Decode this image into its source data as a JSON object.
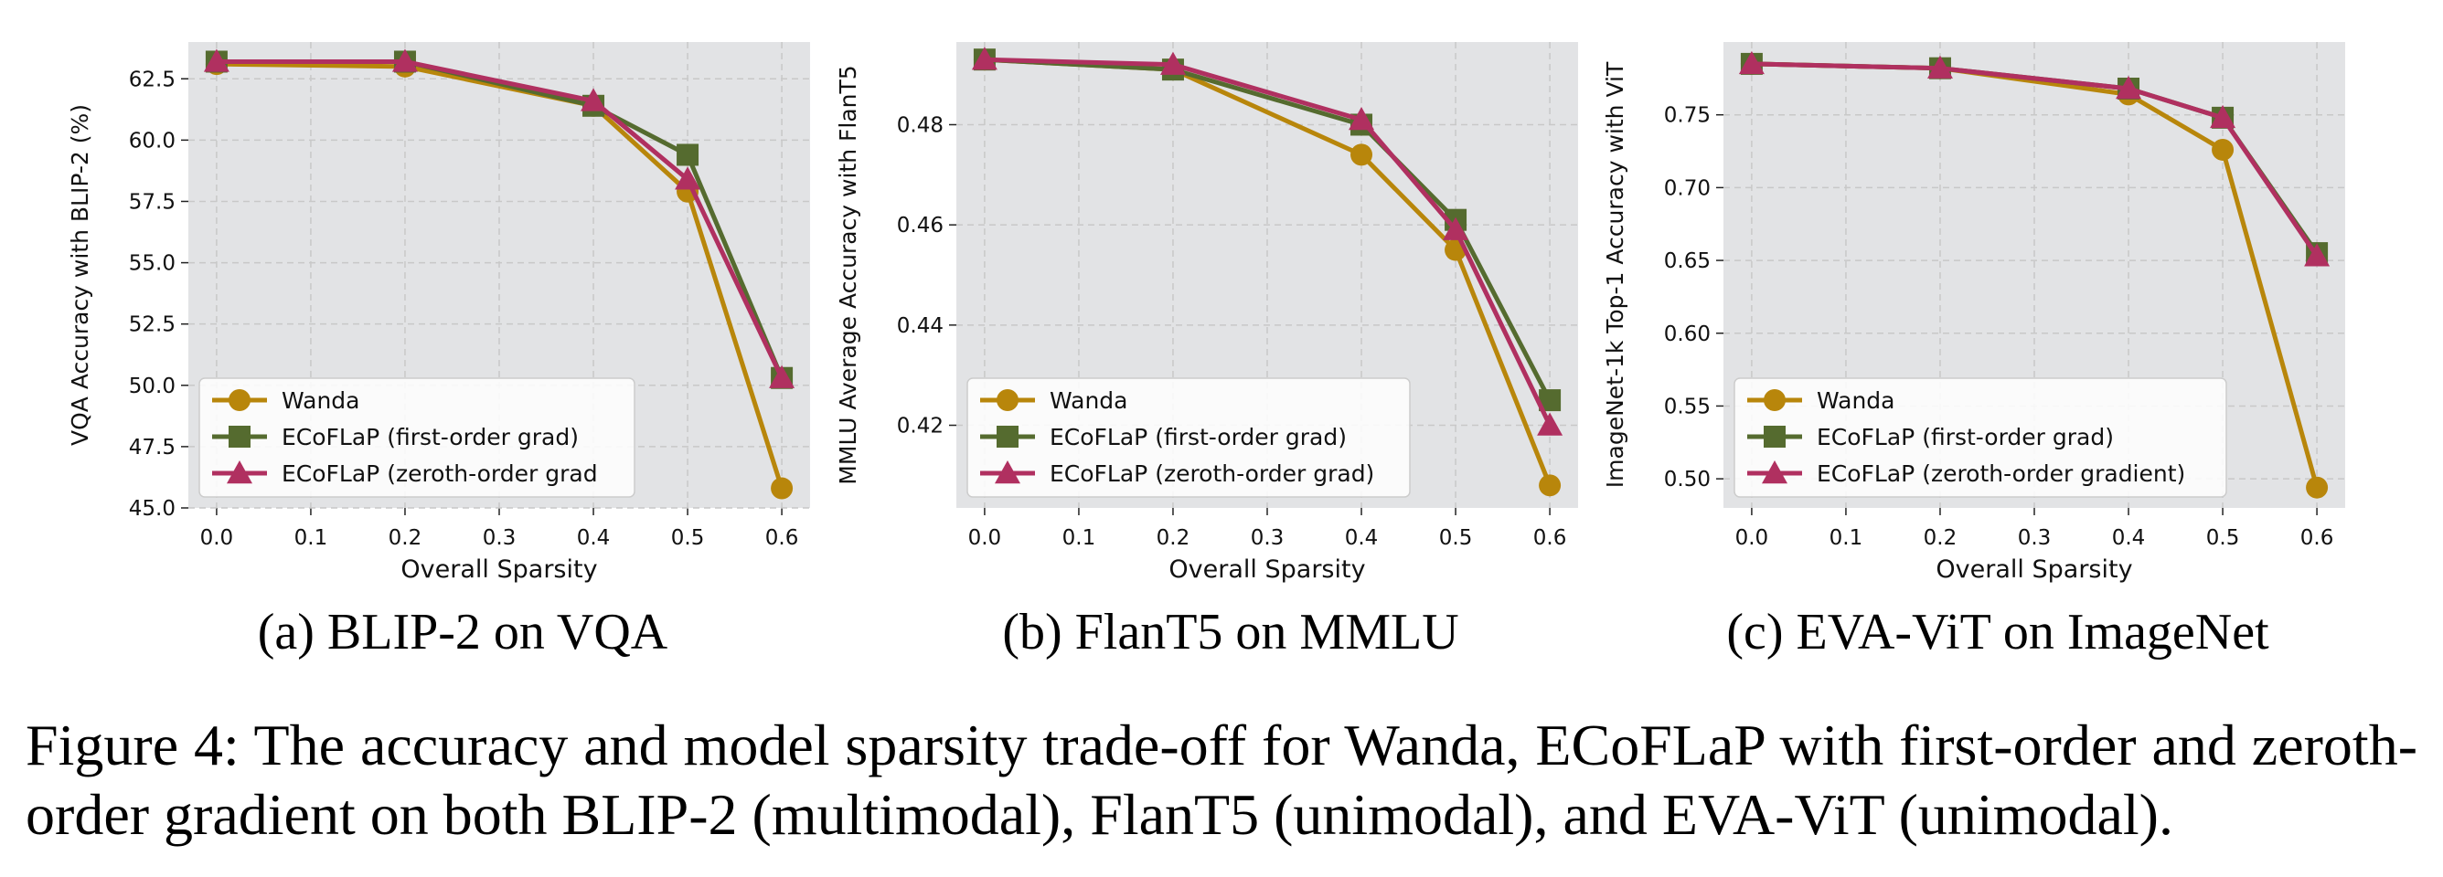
{
  "figure": {
    "caption": "Figure 4: The accuracy and model sparsity trade-off for Wanda, ECoFLaP with first-order and zeroth-order gradient on both BLIP-2 (multimodal), FlanT5 (unimodal), and EVA-ViT (unimodal)."
  },
  "colors": {
    "wanda": "#B8860B",
    "first": "#556B2F",
    "zeroth": "#B03060",
    "plot_bg": "#E2E3E5",
    "grid": "#C8C8C8"
  },
  "chart_data": [
    {
      "type": "line",
      "subtitle": "(a) BLIP-2 on VQA",
      "xlabel": "Overall Sparsity",
      "ylabel": "VQA Accuracy with BLIP-2 (%)",
      "x": [
        0.0,
        0.2,
        0.4,
        0.5,
        0.6
      ],
      "xlim": [
        -0.03,
        0.63
      ],
      "ylim": [
        45.0,
        64.0
      ],
      "xticks": [
        "0.0",
        "0.1",
        "0.2",
        "0.3",
        "0.4",
        "0.5",
        "0.6"
      ],
      "yticks": [
        "45.0",
        "47.5",
        "50.0",
        "52.5",
        "55.0",
        "57.5",
        "60.0",
        "62.5"
      ],
      "grid": true,
      "legend_position": "lower-left",
      "series": [
        {
          "name": "Wanda",
          "marker": "circle",
          "values": [
            63.1,
            63.0,
            61.4,
            57.9,
            45.8
          ]
        },
        {
          "name": "ECoFLaP (first-order grad)",
          "marker": "square",
          "values": [
            63.2,
            63.2,
            61.4,
            59.4,
            50.3
          ]
        },
        {
          "name": "ECoFLaP (zeroth-order grad",
          "marker": "triangle",
          "values": [
            63.2,
            63.2,
            61.6,
            58.4,
            50.3
          ]
        }
      ]
    },
    {
      "type": "line",
      "subtitle": "(b) FlanT5 on MMLU",
      "xlabel": "Overall Sparsity",
      "ylabel": "MMLU Average Accuracy with FlanT5",
      "x": [
        0.0,
        0.2,
        0.4,
        0.5,
        0.6
      ],
      "xlim": [
        -0.03,
        0.63
      ],
      "ylim": [
        0.4035,
        0.4965
      ],
      "xticks": [
        "0.0",
        "0.1",
        "0.2",
        "0.3",
        "0.4",
        "0.5",
        "0.6"
      ],
      "yticks": [
        "0.42",
        "0.44",
        "0.46",
        "0.48"
      ],
      "grid": true,
      "legend_position": "lower-left",
      "series": [
        {
          "name": "Wanda",
          "marker": "circle",
          "values": [
            0.493,
            0.491,
            0.474,
            0.455,
            0.408
          ]
        },
        {
          "name": "ECoFLaP (first-order grad)",
          "marker": "square",
          "values": [
            0.493,
            0.491,
            0.48,
            0.461,
            0.425
          ]
        },
        {
          "name": "ECoFLaP (zeroth-order grad)",
          "marker": "triangle",
          "values": [
            0.493,
            0.492,
            0.481,
            0.459,
            0.42
          ]
        }
      ]
    },
    {
      "type": "line",
      "subtitle": "(c) EVA-ViT on ImageNet",
      "xlabel": "Overall Sparsity",
      "ylabel": "ImageNet-1k Top-1 Accuracy with ViT",
      "x": [
        0.0,
        0.2,
        0.4,
        0.5,
        0.6
      ],
      "xlim": [
        -0.03,
        0.63
      ],
      "ylim": [
        0.48,
        0.8
      ],
      "xticks": [
        "0.0",
        "0.1",
        "0.2",
        "0.3",
        "0.4",
        "0.5",
        "0.6"
      ],
      "yticks": [
        "0.50",
        "0.55",
        "0.60",
        "0.65",
        "0.70",
        "0.75"
      ],
      "grid": true,
      "legend_position": "lower-left",
      "series": [
        {
          "name": "Wanda",
          "marker": "circle",
          "values": [
            0.785,
            0.782,
            0.764,
            0.726,
            0.494
          ]
        },
        {
          "name": "ECoFLaP (first-order grad)",
          "marker": "square",
          "values": [
            0.785,
            0.782,
            0.768,
            0.748,
            0.655
          ]
        },
        {
          "name": "ECoFLaP (zeroth-order gradient)",
          "marker": "triangle",
          "values": [
            0.785,
            0.782,
            0.768,
            0.748,
            0.653
          ]
        }
      ]
    }
  ]
}
